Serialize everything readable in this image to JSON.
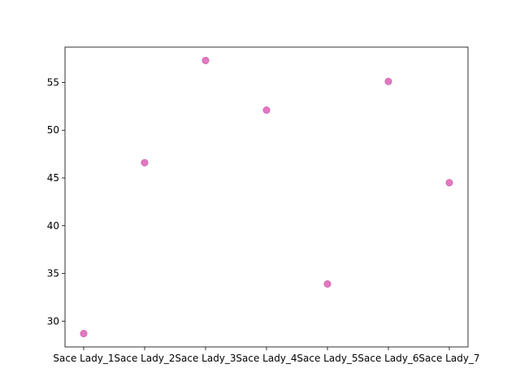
{
  "chart_data": {
    "type": "scatter",
    "title": "",
    "xlabel": "",
    "ylabel": "",
    "categories": [
      "Sace Lady_1",
      "Sace Lady_2",
      "Sace Lady_3",
      "Sace Lady_4",
      "Sace Lady_5",
      "Sace Lady_6",
      "Sace Lady_7"
    ],
    "series": [
      {
        "values": [
          28.7,
          46.6,
          57.3,
          52.1,
          33.9,
          55.1,
          44.5
        ]
      }
    ],
    "ylim": [
      27.3,
      58.7
    ],
    "yticks": [
      30,
      35,
      40,
      45,
      50,
      55
    ],
    "grid": false,
    "legend": "none",
    "colors": {
      "marker_fill": "#e377c2",
      "marker_edge": "#c060a0",
      "axes": "#000000",
      "background": "#ffffff"
    }
  }
}
